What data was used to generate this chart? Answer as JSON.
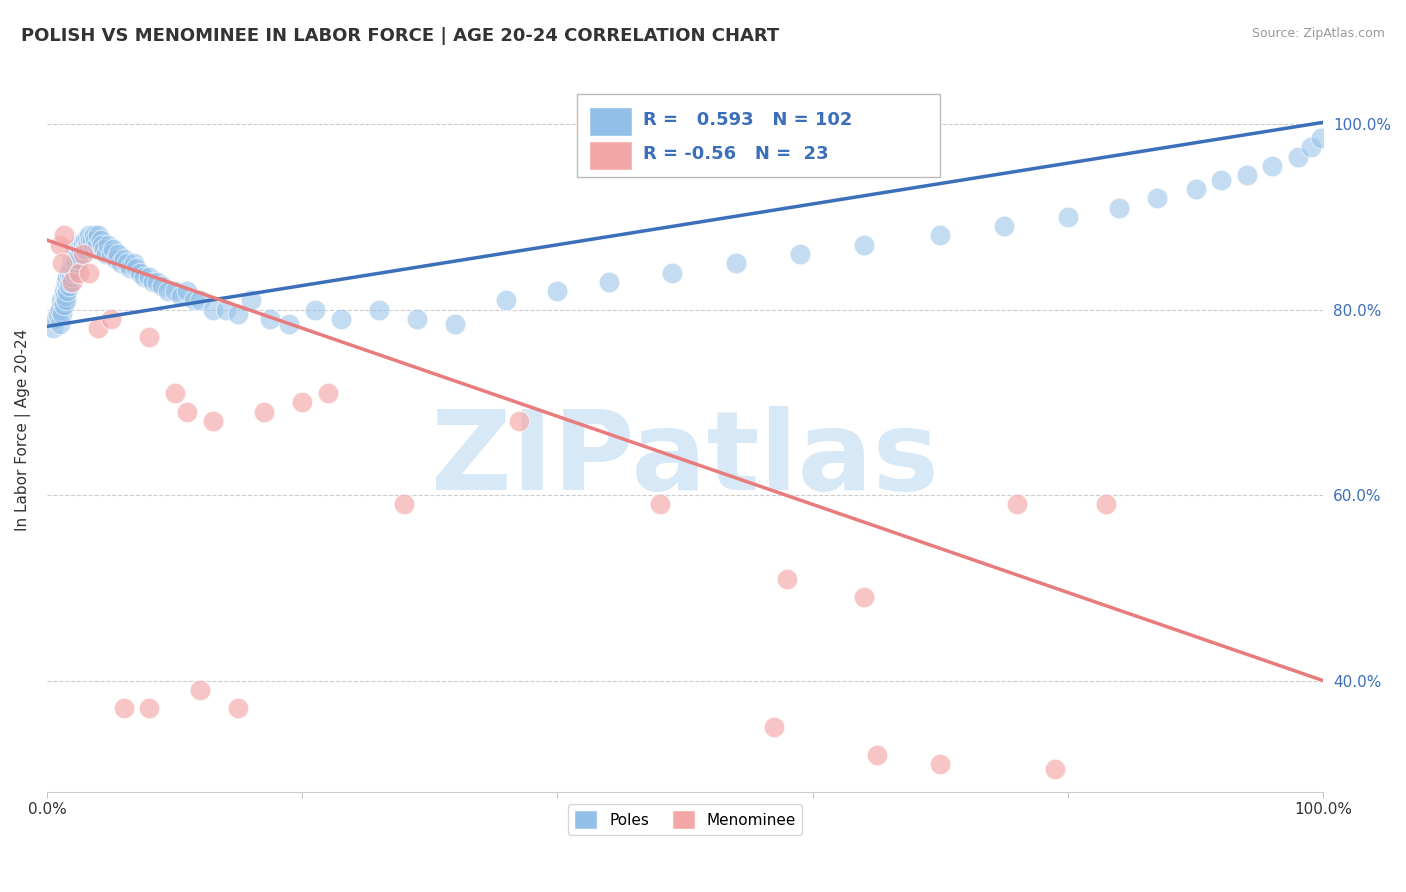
{
  "title": "POLISH VS MENOMINEE IN LABOR FORCE | AGE 20-24 CORRELATION CHART",
  "source_text": "Source: ZipAtlas.com",
  "ylabel": "In Labor Force | Age 20-24",
  "xlim": [
    0.0,
    1.0
  ],
  "ylim": [
    0.28,
    1.06
  ],
  "xtick_labels": [
    "0.0%",
    "",
    "",
    "",
    "",
    "100.0%"
  ],
  "xtick_values": [
    0.0,
    0.2,
    0.4,
    0.6,
    0.8,
    1.0
  ],
  "ytick_right_labels": [
    "100.0%",
    "80.0%",
    "60.0%",
    "40.0%"
  ],
  "ytick_values": [
    1.0,
    0.8,
    0.6,
    0.4
  ],
  "blue_R": 0.593,
  "blue_N": 102,
  "pink_R": -0.56,
  "pink_N": 23,
  "blue_color": "#92c0e8",
  "pink_color": "#f4a7a7",
  "blue_line_color": "#3b6fba",
  "pink_line_color": "#e87c7c",
  "watermark": "ZIPatlas",
  "watermark_color": "#d0e4f5",
  "legend_label_blue": "Poles",
  "legend_label_pink": "Menominee",
  "blue_scatter_x": [
    0.005,
    0.007,
    0.009,
    0.01,
    0.01,
    0.011,
    0.012,
    0.013,
    0.013,
    0.014,
    0.015,
    0.015,
    0.016,
    0.016,
    0.017,
    0.017,
    0.018,
    0.018,
    0.019,
    0.02,
    0.02,
    0.021,
    0.021,
    0.022,
    0.022,
    0.023,
    0.024,
    0.025,
    0.025,
    0.026,
    0.027,
    0.028,
    0.029,
    0.03,
    0.03,
    0.031,
    0.032,
    0.033,
    0.034,
    0.035,
    0.036,
    0.037,
    0.038,
    0.039,
    0.04,
    0.042,
    0.043,
    0.045,
    0.046,
    0.048,
    0.05,
    0.052,
    0.054,
    0.056,
    0.058,
    0.06,
    0.063,
    0.065,
    0.068,
    0.07,
    0.073,
    0.076,
    0.08,
    0.083,
    0.086,
    0.09,
    0.095,
    0.1,
    0.105,
    0.11,
    0.115,
    0.12,
    0.13,
    0.14,
    0.15,
    0.16,
    0.175,
    0.19,
    0.21,
    0.23,
    0.26,
    0.29,
    0.32,
    0.36,
    0.4,
    0.44,
    0.49,
    0.54,
    0.59,
    0.64,
    0.7,
    0.75,
    0.8,
    0.84,
    0.87,
    0.9,
    0.92,
    0.94,
    0.96,
    0.98,
    0.99,
    0.998
  ],
  "blue_scatter_y": [
    0.78,
    0.79,
    0.795,
    0.785,
    0.8,
    0.81,
    0.795,
    0.805,
    0.82,
    0.815,
    0.81,
    0.83,
    0.82,
    0.835,
    0.825,
    0.84,
    0.83,
    0.845,
    0.835,
    0.845,
    0.855,
    0.84,
    0.855,
    0.85,
    0.865,
    0.855,
    0.86,
    0.855,
    0.87,
    0.86,
    0.865,
    0.87,
    0.865,
    0.875,
    0.865,
    0.875,
    0.87,
    0.88,
    0.875,
    0.875,
    0.865,
    0.88,
    0.875,
    0.87,
    0.88,
    0.875,
    0.87,
    0.865,
    0.86,
    0.87,
    0.86,
    0.865,
    0.855,
    0.86,
    0.85,
    0.855,
    0.85,
    0.845,
    0.85,
    0.845,
    0.84,
    0.835,
    0.835,
    0.83,
    0.83,
    0.825,
    0.82,
    0.82,
    0.815,
    0.82,
    0.81,
    0.81,
    0.8,
    0.8,
    0.795,
    0.81,
    0.79,
    0.785,
    0.8,
    0.79,
    0.8,
    0.79,
    0.785,
    0.81,
    0.82,
    0.83,
    0.84,
    0.85,
    0.86,
    0.87,
    0.88,
    0.89,
    0.9,
    0.91,
    0.92,
    0.93,
    0.94,
    0.945,
    0.955,
    0.965,
    0.975,
    0.985
  ],
  "pink_scatter_x": [
    0.01,
    0.012,
    0.013,
    0.02,
    0.025,
    0.028,
    0.033,
    0.04,
    0.05,
    0.08,
    0.1,
    0.11,
    0.13,
    0.17,
    0.2,
    0.22,
    0.28,
    0.37,
    0.48,
    0.58,
    0.64,
    0.76,
    0.83
  ],
  "pink_scatter_y": [
    0.87,
    0.85,
    0.88,
    0.83,
    0.84,
    0.86,
    0.84,
    0.78,
    0.79,
    0.77,
    0.71,
    0.69,
    0.68,
    0.69,
    0.7,
    0.71,
    0.59,
    0.68,
    0.59,
    0.51,
    0.49,
    0.59,
    0.59
  ],
  "extra_pink_x": [
    0.06,
    0.08,
    0.12,
    0.15,
    0.57,
    0.65,
    0.7,
    0.79
  ],
  "extra_pink_y": [
    0.37,
    0.37,
    0.39,
    0.37,
    0.35,
    0.32,
    0.31,
    0.305
  ],
  "blue_line_x0": 0.0,
  "blue_line_y0": 0.782,
  "blue_line_x1": 1.0,
  "blue_line_y1": 1.002,
  "pink_line_x0": 0.0,
  "pink_line_y0": 0.875,
  "pink_line_x1": 1.0,
  "pink_line_y1": 0.4,
  "bg_color": "#ffffff",
  "grid_color": "#cccccc",
  "title_fontsize": 13,
  "axis_label_fontsize": 11,
  "tick_fontsize": 11
}
